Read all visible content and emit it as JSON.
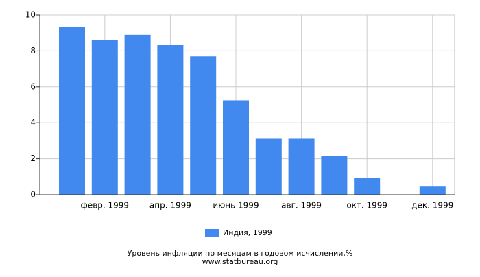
{
  "chart_data": {
    "type": "bar",
    "title": "Уровень инфляции по месяцам в годовом исчислении,%",
    "subtitle": "www.statbureau.org",
    "categories": [
      null,
      "февр. 1999",
      null,
      "апр. 1999",
      null,
      "июнь 1999",
      null,
      "авг. 1999",
      null,
      "окт. 1999",
      null,
      "дек. 1999"
    ],
    "series": [
      {
        "name": "Индия, 1999",
        "color": "#4189ee",
        "values": [
          9.35,
          8.6,
          8.9,
          8.35,
          7.7,
          5.25,
          3.15,
          3.15,
          2.15,
          0.95,
          null,
          0.45
        ]
      }
    ],
    "ylim": [
      0,
      10
    ],
    "yticks": [
      0,
      2,
      4,
      6,
      8,
      10
    ],
    "grid": true,
    "legend": "bottom"
  }
}
